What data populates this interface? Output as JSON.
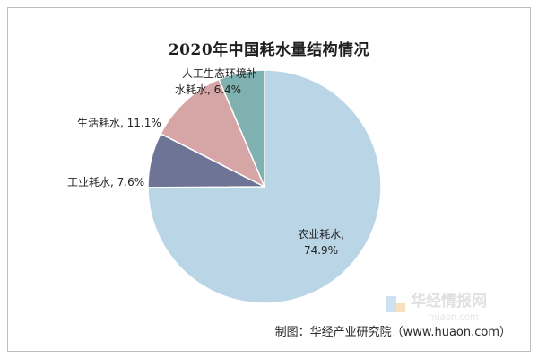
{
  "chart_data": {
    "type": "pie",
    "title": "2020年中国耗水量结构情况",
    "slices": [
      {
        "name": "农业耗水",
        "value": 74.9,
        "label_line1": "农业耗水,",
        "label_line2": "74.9%",
        "color": "#b9d5e6"
      },
      {
        "name": "工业耗水",
        "value": 7.6,
        "label_line1": "工业耗水, 7.6%",
        "label_line2": "",
        "color": "#6e7496"
      },
      {
        "name": "生活耗水",
        "value": 11.1,
        "label_line1": "生活耗水, 11.1%",
        "label_line2": "",
        "color": "#d6a5a5"
      },
      {
        "name": "人工生态环境补水耗水",
        "value": 6.4,
        "label_line1": "人工生态环境补",
        "label_line2": "水耗水, 6.4%",
        "color": "#7fb1b1"
      }
    ],
    "start_angle": "12 o'clock",
    "direction": "clockwise",
    "slice_border_color": "#ffffff"
  },
  "watermark": {
    "text": "华经情报网",
    "subtext": "huaon.com"
  },
  "source": "制图：华经产业研究院（www.huaon.com）"
}
